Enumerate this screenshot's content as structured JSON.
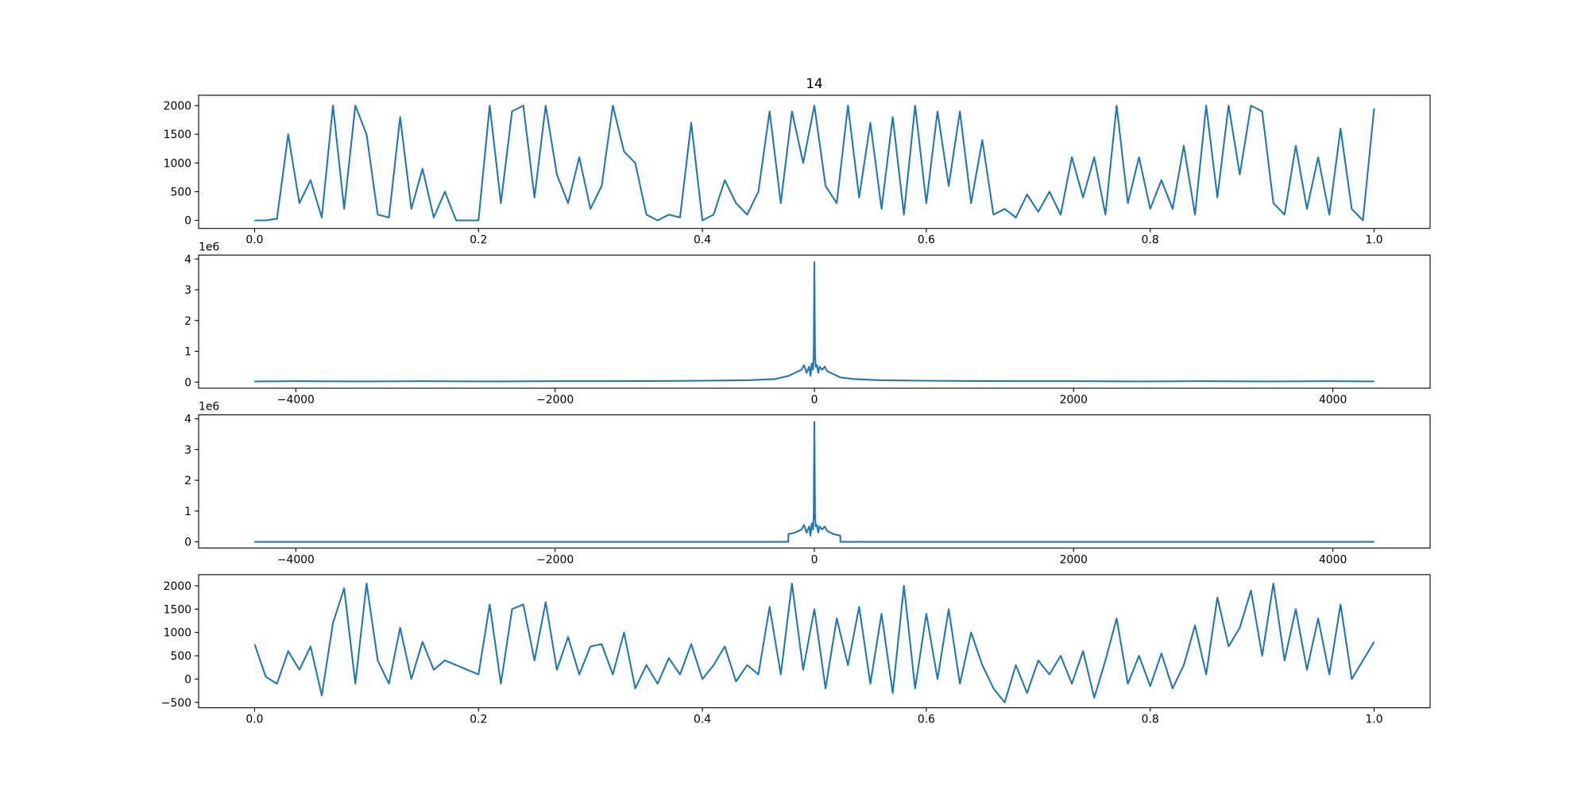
{
  "chart_data": [
    {
      "type": "line",
      "title": "14",
      "color": "#1f77b4",
      "x": [
        0,
        0.01,
        0.02,
        0.03,
        0.04,
        0.05,
        0.06,
        0.07,
        0.08,
        0.09,
        0.1,
        0.11,
        0.12,
        0.13,
        0.14,
        0.15,
        0.16,
        0.17,
        0.18,
        0.19,
        0.2,
        0.21,
        0.22,
        0.23,
        0.24,
        0.25,
        0.26,
        0.27,
        0.28,
        0.29,
        0.3,
        0.31,
        0.32,
        0.33,
        0.34,
        0.35,
        0.36,
        0.37,
        0.38,
        0.39,
        0.4,
        0.41,
        0.42,
        0.43,
        0.44,
        0.45,
        0.46,
        0.47,
        0.48,
        0.49,
        0.5,
        0.51,
        0.52,
        0.53,
        0.54,
        0.55,
        0.56,
        0.57,
        0.58,
        0.59,
        0.6,
        0.61,
        0.62,
        0.63,
        0.64,
        0.65,
        0.66,
        0.67,
        0.68,
        0.69,
        0.7,
        0.71,
        0.72,
        0.73,
        0.74,
        0.75,
        0.76,
        0.77,
        0.78,
        0.79,
        0.8,
        0.81,
        0.82,
        0.83,
        0.84,
        0.85,
        0.86,
        0.87,
        0.88,
        0.89,
        0.9,
        0.91,
        0.92,
        0.93,
        0.94,
        0.95,
        0.96,
        0.97,
        0.98,
        0.99,
        1.0
      ],
      "values": [
        0,
        0,
        30,
        1500,
        300,
        700,
        50,
        2000,
        200,
        2000,
        1500,
        100,
        50,
        1800,
        200,
        900,
        50,
        500,
        0,
        0,
        0,
        2000,
        300,
        1900,
        2000,
        400,
        2000,
        800,
        300,
        1100,
        200,
        600,
        2000,
        1200,
        1000,
        100,
        0,
        100,
        50,
        1700,
        0,
        100,
        700,
        300,
        100,
        500,
        1900,
        300,
        1900,
        1000,
        2000,
        600,
        300,
        2000,
        400,
        1700,
        200,
        1800,
        100,
        2000,
        300,
        1900,
        600,
        1900,
        300,
        1400,
        100,
        200,
        50,
        450,
        150,
        500,
        100,
        1100,
        400,
        1100,
        100,
        2000,
        300,
        1100,
        200,
        700,
        200,
        1300,
        100,
        2000,
        400,
        2000,
        800,
        2000,
        1900,
        300,
        100,
        1300,
        200,
        1100,
        100,
        1600,
        200,
        0,
        1950
      ],
      "xlim": [
        -0.05,
        1.05
      ],
      "ylim": [
        -140,
        2180
      ],
      "xticks": [
        {
          "value": 0,
          "label": "0.0"
        },
        0.2,
        0.4,
        0.6,
        0.8,
        {
          "value": 1,
          "label": "1.0"
        }
      ],
      "yticks": [
        0,
        500,
        1000,
        1500,
        2000
      ]
    },
    {
      "type": "line",
      "color": "#1f77b4",
      "y_offset_label": "1e6",
      "x": [
        -4320,
        -4000,
        -3500,
        -3000,
        -2500,
        -2000,
        -1500,
        -1000,
        -700,
        -500,
        -400,
        -300,
        -200,
        -150,
        -100,
        -80,
        -60,
        -40,
        -30,
        -20,
        -10,
        -5,
        0,
        5,
        10,
        20,
        30,
        40,
        60,
        80,
        100,
        150,
        200,
        300,
        400,
        500,
        700,
        1000,
        1500,
        2000,
        2500,
        3000,
        3500,
        4000,
        4320
      ],
      "values": [
        0.02,
        0.03,
        0.02,
        0.03,
        0.02,
        0.03,
        0.03,
        0.04,
        0.05,
        0.06,
        0.08,
        0.1,
        0.2,
        0.3,
        0.4,
        0.55,
        0.3,
        0.5,
        0.2,
        0.6,
        0.4,
        0.9,
        3.9,
        0.9,
        0.5,
        0.55,
        0.3,
        0.5,
        0.4,
        0.5,
        0.35,
        0.25,
        0.15,
        0.1,
        0.08,
        0.06,
        0.05,
        0.04,
        0.03,
        0.03,
        0.02,
        0.03,
        0.02,
        0.03,
        0.02
      ],
      "xlim": [
        -4750,
        4750
      ],
      "ylim": [
        -0.2,
        4.13
      ],
      "xticks": [
        {
          "value": -4000,
          "label": "−4000"
        },
        {
          "value": -2000,
          "label": "−2000"
        },
        0,
        2000,
        4000
      ],
      "yticks": [
        0,
        1,
        2,
        3,
        4
      ]
    },
    {
      "type": "line",
      "color": "#1f77b4",
      "y_offset_label": "1e6",
      "x": [
        -4320,
        -201,
        -200,
        -150,
        -100,
        -80,
        -60,
        -40,
        -30,
        -20,
        -10,
        -5,
        0,
        5,
        10,
        20,
        30,
        40,
        60,
        80,
        100,
        150,
        200,
        201,
        4320
      ],
      "values": [
        0,
        0,
        0.25,
        0.3,
        0.4,
        0.55,
        0.3,
        0.5,
        0.2,
        0.6,
        0.4,
        0.9,
        3.9,
        0.9,
        0.5,
        0.55,
        0.3,
        0.5,
        0.4,
        0.5,
        0.35,
        0.25,
        0.2,
        0,
        0
      ],
      "xlim": [
        -4750,
        4750
      ],
      "ylim": [
        -0.2,
        4.13
      ],
      "xticks": [
        {
          "value": -4000,
          "label": "−4000"
        },
        {
          "value": -2000,
          "label": "−2000"
        },
        0,
        2000,
        4000
      ],
      "yticks": [
        0,
        1,
        2,
        3,
        4
      ]
    },
    {
      "type": "line",
      "color": "#1f77b4",
      "x": [
        0,
        0.01,
        0.02,
        0.03,
        0.04,
        0.05,
        0.06,
        0.07,
        0.08,
        0.09,
        0.1,
        0.11,
        0.12,
        0.13,
        0.14,
        0.15,
        0.16,
        0.17,
        0.18,
        0.19,
        0.2,
        0.21,
        0.22,
        0.23,
        0.24,
        0.25,
        0.26,
        0.27,
        0.28,
        0.29,
        0.3,
        0.31,
        0.32,
        0.33,
        0.34,
        0.35,
        0.36,
        0.37,
        0.38,
        0.39,
        0.4,
        0.41,
        0.42,
        0.43,
        0.44,
        0.45,
        0.46,
        0.47,
        0.48,
        0.49,
        0.5,
        0.51,
        0.52,
        0.53,
        0.54,
        0.55,
        0.56,
        0.57,
        0.58,
        0.59,
        0.6,
        0.61,
        0.62,
        0.63,
        0.64,
        0.65,
        0.66,
        0.67,
        0.68,
        0.69,
        0.7,
        0.71,
        0.72,
        0.73,
        0.74,
        0.75,
        0.76,
        0.77,
        0.78,
        0.79,
        0.8,
        0.81,
        0.82,
        0.83,
        0.84,
        0.85,
        0.86,
        0.87,
        0.88,
        0.89,
        0.9,
        0.91,
        0.92,
        0.93,
        0.94,
        0.95,
        0.96,
        0.97,
        0.98,
        0.99,
        1.0
      ],
      "values": [
        750,
        50,
        -100,
        600,
        200,
        700,
        -350,
        1200,
        1950,
        -100,
        2050,
        400,
        -100,
        1100,
        0,
        800,
        200,
        400,
        300,
        200,
        100,
        1600,
        -100,
        1500,
        1600,
        400,
        1650,
        200,
        900,
        100,
        700,
        750,
        100,
        1000,
        -200,
        300,
        -100,
        450,
        100,
        750,
        0,
        300,
        700,
        -50,
        300,
        100,
        1550,
        100,
        2050,
        200,
        1500,
        -200,
        1300,
        300,
        1550,
        -100,
        1400,
        -300,
        2000,
        -200,
        1400,
        0,
        1500,
        -100,
        1000,
        300,
        -200,
        -500,
        300,
        -300,
        400,
        100,
        500,
        -100,
        600,
        -400,
        400,
        1300,
        -100,
        500,
        -150,
        550,
        -200,
        300,
        1150,
        100,
        1750,
        700,
        1100,
        1900,
        500,
        2050,
        400,
        1500,
        200,
        1300,
        100,
        1600,
        0,
        400,
        800
      ],
      "xlim": [
        -0.05,
        1.05
      ],
      "ylim": [
        -615,
        2240
      ],
      "xticks": [
        {
          "value": 0,
          "label": "0.0"
        },
        0.2,
        0.4,
        0.6,
        0.8,
        {
          "value": 1,
          "label": "1.0"
        }
      ],
      "yticks": [
        {
          "value": -500,
          "label": "−500"
        },
        0,
        500,
        1000,
        1500,
        2000
      ]
    }
  ]
}
